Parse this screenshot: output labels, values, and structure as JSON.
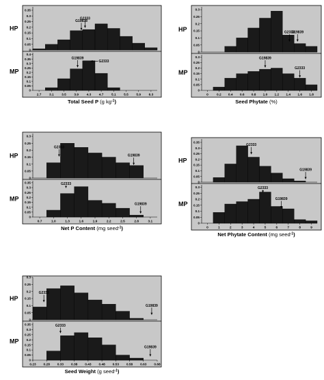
{
  "colors": {
    "panel_bg": "#c8c8c8",
    "bar_fill": "#1a1a1a",
    "bar_stroke": "#000000",
    "text": "#000000"
  },
  "chart_data": [
    {
      "type": "bar",
      "xlabel_main": "Total Seed P",
      "xlabel_unit": "(g kg",
      "xlabel_sup": "-1",
      "xlabel_end": ")",
      "xticks": [
        "2.7",
        "3.1",
        "3.5",
        "3.9",
        "4.3",
        "4.7",
        "5.1",
        "5.5",
        "5.9",
        "6.3"
      ],
      "bins": 10,
      "panels": [
        {
          "row_label": "HP",
          "yticks": [
            "0",
            "0.05",
            "0.1",
            "0.15",
            "0.2",
            "0.25",
            "0.3",
            "0.35"
          ],
          "ymax": 0.38,
          "values": [
            0.01,
            0.05,
            0.09,
            0.17,
            0.18,
            0.23,
            0.19,
            0.12,
            0.06,
            0.02
          ],
          "annotations": [
            {
              "label": "G19838",
              "bin": 3.9,
              "y": 0.17,
              "dir": "down"
            },
            {
              "label": "G2333",
              "bin": 4.2,
              "y": 0.19,
              "dir": "up"
            }
          ]
        },
        {
          "row_label": "MP",
          "yticks": [
            "0",
            "0.05",
            "0.1",
            "0.15",
            "0.2",
            "0.25",
            "0.3",
            "0.35",
            "0.4"
          ],
          "ymax": 0.42,
          "values": [
            0.0,
            0.03,
            0.13,
            0.24,
            0.33,
            0.19,
            0.03,
            0.0,
            0.0,
            0.0
          ],
          "annotations": [
            {
              "label": "G19839",
              "bin": 3.6,
              "y": 0.25,
              "dir": "down"
            },
            {
              "label": "G2333",
              "bin": 5.3,
              "y": 0.33,
              "dir": "left"
            }
          ]
        }
      ]
    },
    {
      "type": "bar",
      "xlabel_main": "Seed Phytate",
      "xlabel_unit": "(%)",
      "xlabel_sup": "",
      "xlabel_end": "",
      "xticks": [
        "0",
        "0.2",
        "0.4",
        "0.6",
        "0.8",
        "1.0",
        "1.2",
        "1.4",
        "1.6",
        "1.8"
      ],
      "bins": 10,
      "panels": [
        {
          "row_label": "HP",
          "yticks": [
            "0",
            "0.05",
            "0.1",
            "0.15",
            "0.2",
            "0.25",
            "0.3"
          ],
          "ymax": 0.32,
          "values": [
            0.0,
            0.0,
            0.04,
            0.1,
            0.17,
            0.24,
            0.29,
            0.12,
            0.06,
            0.04
          ],
          "annotations": [
            {
              "label": "G2333",
              "bin": 7.6,
              "y": 0.07,
              "dir": "down"
            },
            {
              "label": "G19839",
              "bin": 8.3,
              "y": 0.07,
              "dir": "down"
            }
          ]
        },
        {
          "row_label": "MP",
          "yticks": [
            "0",
            "0.05",
            "0.1",
            "0.15",
            "0.2",
            "0.25",
            "0.3"
          ],
          "ymax": 0.32,
          "values": [
            0.0,
            0.03,
            0.11,
            0.15,
            0.17,
            0.19,
            0.2,
            0.15,
            0.11,
            0.05
          ],
          "annotations": [
            {
              "label": "G19839",
              "bin": 5.5,
              "y": 0.2,
              "dir": "down"
            },
            {
              "label": "G2333",
              "bin": 8.5,
              "y": 0.11,
              "dir": "down"
            }
          ]
        }
      ]
    },
    {
      "type": "bar",
      "xlabel_main": "Net P Content",
      "xlabel_unit": "(mg seed",
      "xlabel_sup": "-1",
      "xlabel_end": ")",
      "xticks": [
        "0.7",
        "1.0",
        "1.3",
        "1.6",
        "1.9",
        "2.2",
        "2.5",
        "2.8",
        "3.1"
      ],
      "bins": 9,
      "panels": [
        {
          "row_label": "HP",
          "yticks": [
            "0",
            "0.05",
            "0.1",
            "0.15",
            "0.2",
            "0.25",
            "0.3"
          ],
          "ymax": 0.32,
          "values": [
            0.0,
            0.11,
            0.25,
            0.22,
            0.18,
            0.15,
            0.11,
            0.09,
            0.0
          ],
          "annotations": [
            {
              "label": "G2333",
              "bin": 1.9,
              "y": 0.15,
              "dir": "down"
            },
            {
              "label": "G19839",
              "bin": 7.3,
              "y": 0.09,
              "dir": "down"
            }
          ]
        },
        {
          "row_label": "MP",
          "yticks": [
            "0",
            "0.05",
            "0.1",
            "0.15",
            "0.2",
            "0.25",
            "0.3",
            "0.35"
          ],
          "ymax": 0.37,
          "values": [
            0.0,
            0.07,
            0.24,
            0.31,
            0.17,
            0.14,
            0.09,
            0.02,
            0.0
          ],
          "annotations": [
            {
              "label": "G2333",
              "bin": 2.4,
              "y": 0.29,
              "dir": "down"
            },
            {
              "label": "G19839",
              "bin": 7.8,
              "y": 0.03,
              "dir": "down"
            }
          ]
        }
      ]
    },
    {
      "type": "bar",
      "xlabel_main": "Net Phytate Content",
      "xlabel_unit": "(mg seed",
      "xlabel_sup": "-1",
      "xlabel_end": ")",
      "xticks": [
        "0",
        "1",
        "2",
        "3",
        "4",
        "5",
        "6",
        "7",
        "8",
        "9"
      ],
      "bins": 10,
      "panels": [
        {
          "row_label": "HP",
          "yticks": [
            "0",
            "0.05",
            "0.1",
            "0.15",
            "0.2",
            "0.25",
            "0.3",
            "0.35"
          ],
          "ymax": 0.38,
          "values": [
            0.0,
            0.04,
            0.16,
            0.32,
            0.22,
            0.14,
            0.08,
            0.03,
            0.01,
            0.0
          ],
          "annotations": [
            {
              "label": "G2333",
              "bin": 4.3,
              "y": 0.24,
              "dir": "down"
            },
            {
              "label": "G19839",
              "bin": 9.0,
              "y": 0.02,
              "dir": "down"
            }
          ]
        },
        {
          "row_label": "MP",
          "yticks": [
            "0",
            "0.05",
            "0.1",
            "0.15",
            "0.2",
            "0.25",
            "0.3"
          ],
          "ymax": 0.32,
          "values": [
            0.0,
            0.09,
            0.16,
            0.18,
            0.2,
            0.26,
            0.14,
            0.12,
            0.03,
            0.02
          ],
          "annotations": [
            {
              "label": "G2333",
              "bin": 5.3,
              "y": 0.25,
              "dir": "down"
            },
            {
              "label": "G19839",
              "bin": 6.9,
              "y": 0.12,
              "dir": "down"
            }
          ]
        }
      ]
    },
    {
      "type": "bar",
      "xlabel_main": "Seed Weight",
      "xlabel_unit": "(g seed",
      "xlabel_sup": "-1",
      "xlabel_end": ")",
      "xticks": [
        "0.23",
        "0.28",
        "0.33",
        "0.38",
        "0.43",
        "0.48",
        "0.53",
        "0.58",
        "0.63",
        "0.68"
      ],
      "bins": 9,
      "panels": [
        {
          "row_label": "HP",
          "yticks": [
            "0",
            "0.05",
            "0.1",
            "0.15",
            "0.2",
            "0.25",
            "0.3"
          ],
          "ymax": 0.3,
          "values": [
            0.09,
            0.22,
            0.24,
            0.19,
            0.14,
            0.11,
            0.06,
            0.01,
            0.0
          ],
          "annotations": [
            {
              "label": "G2333",
              "bin": 0.8,
              "y": 0.12,
              "dir": "down"
            },
            {
              "label": "G19839",
              "bin": 8.6,
              "y": 0.03,
              "dir": "down"
            }
          ]
        },
        {
          "row_label": "MP",
          "yticks": [
            "0",
            "0.05",
            "0.1",
            "0.15",
            "0.2",
            "0.25",
            "0.3",
            "0.35"
          ],
          "ymax": 0.37,
          "values": [
            0.0,
            0.09,
            0.24,
            0.27,
            0.22,
            0.15,
            0.05,
            0.02,
            0.0
          ],
          "annotations": [
            {
              "label": "G2333",
              "bin": 2.0,
              "y": 0.26,
              "dir": "down"
            },
            {
              "label": "G19839",
              "bin": 8.5,
              "y": 0.03,
              "dir": "down"
            }
          ]
        }
      ]
    }
  ]
}
